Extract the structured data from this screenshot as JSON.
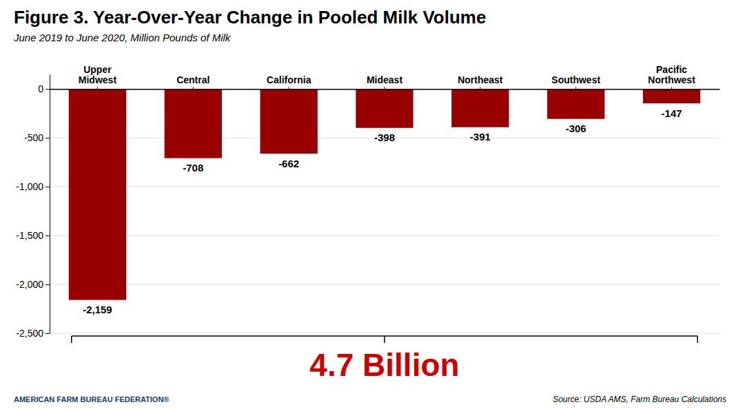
{
  "chart_data": {
    "type": "bar",
    "title": "Figure 3. Year-Over-Year Change in Pooled Milk Volume",
    "subtitle": "June 2019 to June 2020, Million Pounds of Milk",
    "categories": [
      "Upper\nMidwest",
      "Central",
      "California",
      "Mideast",
      "Northeast",
      "Southwest",
      "Pacific\nNorthwest"
    ],
    "values": [
      -2159,
      -708,
      -662,
      -398,
      -391,
      -306,
      -147
    ],
    "value_labels": [
      "-2,159",
      "-708",
      "-662",
      "-398",
      "-391",
      "-306",
      "-147"
    ],
    "data_labels": true,
    "color": "#990000",
    "ylim": [
      -2500,
      150
    ],
    "yticks": [
      0,
      -500,
      {
        "value": -1000,
        "label": "-1,000"
      },
      {
        "value": -1500,
        "label": "-1,500"
      },
      {
        "value": -2000,
        "label": "-2,000"
      },
      {
        "value": -2500,
        "label": "-2,500"
      }
    ],
    "grid": true,
    "annotations": [
      {
        "text": "4.7 Billion",
        "color": "#cc0000"
      },
      {
        "text": "Source: USDA AMS, Farm Bureau Calculations"
      },
      {
        "text": "AMERICAN FARM BUREAU FEDERATION®",
        "color": "#1a3a6e"
      }
    ]
  }
}
